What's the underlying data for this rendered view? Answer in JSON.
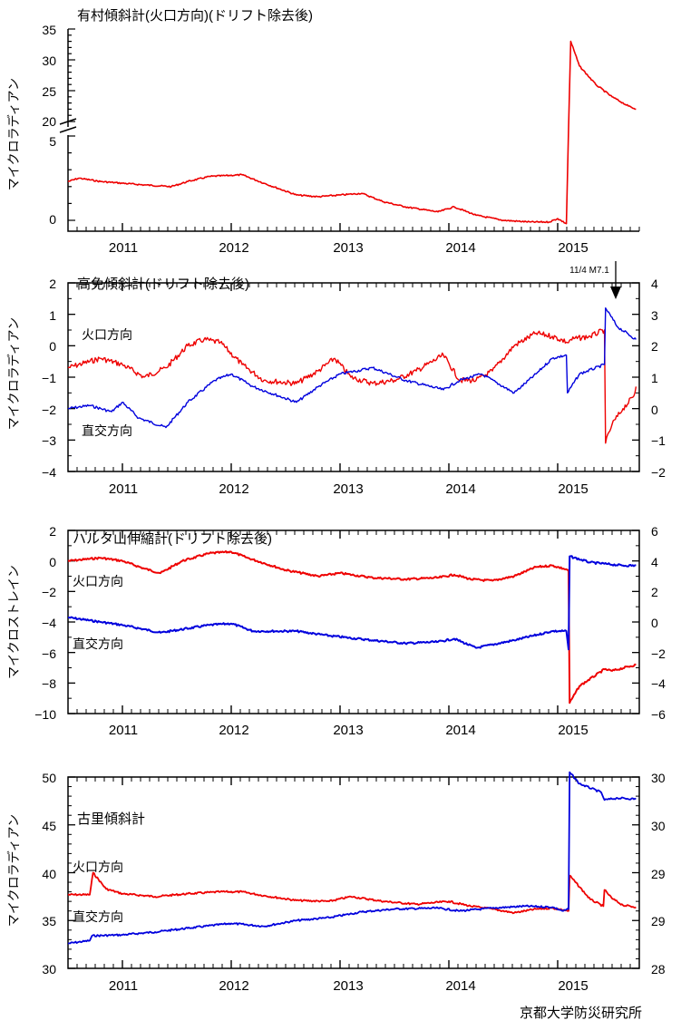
{
  "credit": "京都大学防災研究所",
  "colors": {
    "red": "#ee0000",
    "blue": "#0000dd"
  },
  "chart_data": [
    {
      "type": "line",
      "title": "有村傾斜計(火口方向)(ドリフト除去後)",
      "ylabel": "マイクロラディアン",
      "xlim": [
        2010.5,
        2015.75
      ],
      "x_ticks": [
        "2011",
        "2012",
        "2013",
        "2014",
        "2015"
      ],
      "y_axis_note": "broken axis: 0–5 and 20–35",
      "y_ticks": [
        "0",
        "5",
        "20",
        "25",
        "30",
        "35"
      ],
      "series": [
        {
          "color": "red",
          "x": [
            2010.5,
            2010.6,
            2010.8,
            2011.0,
            2011.2,
            2011.45,
            2011.6,
            2011.8,
            2012.1,
            2012.3,
            2012.6,
            2012.8,
            2013.0,
            2013.2,
            2013.4,
            2013.6,
            2013.9,
            2014.05,
            2014.25,
            2014.5,
            2014.75,
            2014.92,
            2015.0,
            2015.08,
            2015.1,
            2015.12,
            2015.2,
            2015.35,
            2015.5,
            2015.65,
            2015.72
          ],
          "y": [
            2.3,
            2.5,
            2.3,
            2.2,
            2.1,
            2.0,
            2.3,
            2.6,
            2.7,
            2.2,
            1.5,
            1.4,
            1.5,
            1.6,
            1.1,
            0.8,
            0.5,
            0.8,
            0.3,
            0.0,
            -0.1,
            -0.1,
            0.1,
            -0.2,
            13.0,
            33.0,
            29.0,
            26.0,
            24.0,
            22.5,
            22.0
          ]
        }
      ]
    },
    {
      "type": "line",
      "title": "高免傾斜計(ドリフト除去後)",
      "ylabel": "マイクロラディアン",
      "xlim": [
        2010.5,
        2015.75
      ],
      "x_ticks": [
        "2011",
        "2012",
        "2013",
        "2014",
        "2015"
      ],
      "ylim": [
        -4,
        2
      ],
      "y_ticks": [
        "2",
        "1",
        "0",
        "−1",
        "−2",
        "−3",
        "−4"
      ],
      "y2lim": [
        -2,
        4
      ],
      "y2_ticks": [
        "4",
        "3",
        "2",
        "1",
        "0",
        "−1",
        "−2"
      ],
      "annotation": "11/4 M7.1",
      "series": [
        {
          "name": "火口方向",
          "color": "red",
          "axis": "left",
          "x": [
            2010.5,
            2010.8,
            2011.0,
            2011.2,
            2011.4,
            2011.6,
            2011.75,
            2011.9,
            2012.1,
            2012.3,
            2012.6,
            2012.8,
            2012.95,
            2013.1,
            2013.3,
            2013.5,
            2013.7,
            2013.95,
            2014.1,
            2014.25,
            2014.4,
            2014.6,
            2014.8,
            2014.95,
            2015.1,
            2015.12,
            2015.3,
            2015.43,
            2015.44,
            2015.5,
            2015.6,
            2015.7,
            2015.72
          ],
          "y": [
            -0.7,
            -0.4,
            -0.6,
            -1.0,
            -0.7,
            0.0,
            0.2,
            0.1,
            -0.6,
            -1.1,
            -1.2,
            -0.8,
            -0.4,
            -1.0,
            -1.2,
            -1.1,
            -0.8,
            -0.3,
            -1.1,
            -1.1,
            -0.8,
            0.0,
            0.4,
            0.3,
            0.1,
            0.2,
            0.3,
            0.5,
            -3.1,
            -2.5,
            -2.0,
            -1.6,
            -1.3
          ]
        },
        {
          "name": "直交方向",
          "color": "blue",
          "axis": "left",
          "x": [
            2010.5,
            2010.7,
            2010.9,
            2011.0,
            2011.15,
            2011.4,
            2011.6,
            2011.85,
            2012.0,
            2012.2,
            2012.6,
            2012.8,
            2013.0,
            2013.3,
            2013.6,
            2013.95,
            2014.1,
            2014.3,
            2014.6,
            2014.8,
            2014.95,
            2015.08,
            2015.09,
            2015.2,
            2015.43,
            2015.44,
            2015.55,
            2015.72
          ],
          "y": [
            -2.0,
            -1.9,
            -2.1,
            -1.8,
            -2.3,
            -2.6,
            -1.8,
            -1.1,
            -0.9,
            -1.3,
            -1.8,
            -1.3,
            -0.9,
            -0.7,
            -1.1,
            -1.4,
            -1.1,
            -0.9,
            -1.5,
            -0.9,
            -0.4,
            -0.3,
            -1.5,
            -0.9,
            -0.6,
            1.2,
            0.6,
            0.2
          ]
        }
      ]
    },
    {
      "type": "line",
      "title": "ハルタ山伸縮計(ドリフト除去後)",
      "ylabel": "マイクロストレイン",
      "xlim": [
        2010.5,
        2015.75
      ],
      "x_ticks": [
        "2011",
        "2012",
        "2013",
        "2014",
        "2015"
      ],
      "ylim": [
        -10,
        2
      ],
      "y_ticks": [
        "2",
        "0",
        "−2",
        "−4",
        "−6",
        "−8",
        "−10"
      ],
      "y2lim": [
        -6,
        6
      ],
      "y2_ticks": [
        "6",
        "4",
        "2",
        "0",
        "−2",
        "−4",
        "−6"
      ],
      "series": [
        {
          "name": "火口方向",
          "color": "red",
          "axis": "left",
          "x": [
            2010.5,
            2010.8,
            2011.0,
            2011.2,
            2011.35,
            2011.55,
            2011.8,
            2012.0,
            2012.15,
            2012.5,
            2012.8,
            2013.0,
            2013.3,
            2013.6,
            2013.9,
            2014.05,
            2014.2,
            2014.4,
            2014.6,
            2014.8,
            2014.95,
            2015.05,
            2015.1,
            2015.11,
            2015.2,
            2015.43,
            2015.5,
            2015.72
          ],
          "y": [
            0.0,
            0.2,
            0.0,
            -0.5,
            -0.8,
            0.0,
            0.5,
            0.6,
            0.2,
            -0.6,
            -1.0,
            -0.8,
            -1.1,
            -1.2,
            -1.1,
            -0.9,
            -1.2,
            -1.3,
            -1.0,
            -0.4,
            -0.3,
            -0.5,
            -0.6,
            -9.3,
            -8.2,
            -7.1,
            -7.2,
            -6.8
          ]
        },
        {
          "name": "直交方向",
          "color": "blue",
          "axis": "left",
          "x": [
            2010.5,
            2010.8,
            2011.0,
            2011.35,
            2011.8,
            2012.0,
            2012.2,
            2012.6,
            2012.9,
            2013.3,
            2013.6,
            2013.9,
            2014.05,
            2014.25,
            2014.6,
            2014.95,
            2015.08,
            2015.1,
            2015.11,
            2015.3,
            2015.45,
            2015.6,
            2015.72
          ],
          "y": [
            -3.7,
            -4.0,
            -4.2,
            -4.7,
            -4.2,
            -4.1,
            -4.6,
            -4.6,
            -4.9,
            -5.2,
            -5.4,
            -5.3,
            -5.1,
            -5.7,
            -5.2,
            -4.6,
            -4.6,
            -5.8,
            0.3,
            -0.1,
            -0.2,
            -0.3,
            -0.3
          ]
        }
      ]
    },
    {
      "type": "line",
      "title": "古里傾斜計",
      "ylabel": "マイクロラディアン",
      "xlim": [
        2010.5,
        2015.75
      ],
      "x_ticks": [
        "2011",
        "2012",
        "2013",
        "2014",
        "2015"
      ],
      "ylim": [
        30,
        50
      ],
      "y_ticks": [
        "50",
        "45",
        "40",
        "35",
        "30"
      ],
      "y2lim": [
        28,
        30
      ],
      "y2_ticks": [
        "30",
        "30",
        "29",
        "29",
        "28"
      ],
      "series": [
        {
          "name": "火口方向",
          "color": "red",
          "axis": "left",
          "x": [
            2010.5,
            2010.7,
            2010.73,
            2010.85,
            2011.0,
            2011.3,
            2011.6,
            2011.9,
            2012.1,
            2012.3,
            2012.6,
            2012.9,
            2013.1,
            2013.4,
            2013.7,
            2014.0,
            2014.2,
            2014.4,
            2014.6,
            2014.8,
            2014.95,
            2015.05,
            2015.1,
            2015.11,
            2015.3,
            2015.42,
            2015.43,
            2015.5,
            2015.6,
            2015.72
          ],
          "y": [
            37.7,
            37.7,
            40.0,
            38.3,
            37.8,
            37.5,
            37.8,
            38.0,
            38.0,
            37.6,
            37.1,
            37.0,
            37.5,
            37.0,
            36.7,
            37.0,
            36.5,
            36.2,
            35.8,
            36.2,
            36.3,
            36.1,
            36.0,
            39.7,
            37.2,
            36.5,
            38.2,
            37.3,
            36.6,
            36.4
          ]
        },
        {
          "name": "直交方向",
          "color": "blue",
          "axis": "left",
          "x": [
            2010.5,
            2010.7,
            2010.72,
            2011.0,
            2011.3,
            2011.6,
            2012.0,
            2012.3,
            2012.6,
            2012.9,
            2013.2,
            2013.5,
            2013.9,
            2014.1,
            2014.4,
            2014.7,
            2014.95,
            2015.05,
            2015.1,
            2015.11,
            2015.2,
            2015.4,
            2015.43,
            2015.55,
            2015.72
          ],
          "y": [
            32.6,
            32.9,
            33.4,
            33.5,
            33.8,
            34.2,
            34.7,
            34.4,
            35.0,
            35.3,
            35.9,
            36.2,
            36.3,
            36.0,
            36.3,
            36.5,
            36.4,
            36.0,
            36.2,
            50.5,
            49.3,
            48.4,
            47.6,
            47.8,
            47.7
          ]
        }
      ]
    }
  ]
}
